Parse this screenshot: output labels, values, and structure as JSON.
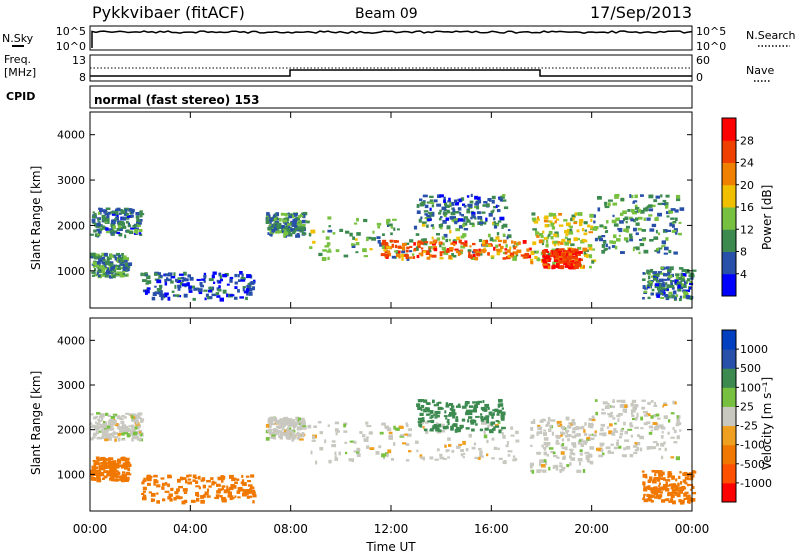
{
  "header": {
    "station": "Pykkvibaer (fitACF)",
    "beam": "Beam 09",
    "date": "17/Sep/2013"
  },
  "panels": {
    "nsky_label": "N.Sky",
    "nsky_ticks": [
      "10^5",
      "10^0"
    ],
    "nsearch_label": "N.Search",
    "nsearch_ticks": [
      "10^5",
      "10^0"
    ],
    "freq_label": "Freq.",
    "freq_unit": "[MHz]",
    "freq_ticks": [
      "13",
      "8"
    ],
    "nave_label": "Nave",
    "nave_ticks": [
      "60",
      "0"
    ],
    "cpid_label": "CPID",
    "cpid_text": "normal (fast stereo) 153"
  },
  "colors": {
    "power_scale": [
      "#0000ff",
      "#2850a8",
      "#3c8a50",
      "#78c040",
      "#f0c000",
      "#f08000",
      "#f04000",
      "#ff0000"
    ],
    "velocity_scale": [
      "#ff0000",
      "#ff5000",
      "#f07800",
      "#f0a020",
      "#c8c8c0",
      "#78c040",
      "#3c8a50",
      "#2850a8",
      "#0040c0"
    ],
    "ground_scatter": "#c8c8c0",
    "trace": "#000000"
  },
  "chart_data": [
    {
      "type": "heatmap",
      "title": "",
      "xlabel": "Time UT",
      "ylabel": "Slant Range [km]",
      "x_ticks": [
        "00:00",
        "04:00",
        "08:00",
        "12:00",
        "16:00",
        "20:00",
        "00:00"
      ],
      "y_ticks": [
        1000,
        2000,
        3000,
        4000
      ],
      "xlim": [
        0,
        24
      ],
      "ylim": [
        180,
        4500
      ],
      "colorbar": {
        "label": "Power [dB]",
        "ticks": [
          "4",
          "8",
          "12",
          "16",
          "20",
          "24",
          "28"
        ],
        "range": [
          0,
          30
        ]
      },
      "scatter_regions": [
        {
          "t0": 0.0,
          "t1": 1.5,
          "r0": 900,
          "r1": 1400,
          "value": 10
        },
        {
          "t0": 0.0,
          "t1": 2.0,
          "r0": 1800,
          "r1": 2400,
          "value": 8
        },
        {
          "t0": 2.0,
          "t1": 6.5,
          "r0": 400,
          "r1": 1000,
          "value": 6
        },
        {
          "t0": 7.0,
          "t1": 8.5,
          "r0": 1800,
          "r1": 2300,
          "value": 10
        },
        {
          "t0": 8.5,
          "t1": 17.0,
          "r0": 1300,
          "r1": 2200,
          "value": 12
        },
        {
          "t0": 11.5,
          "t1": 17.5,
          "r0": 1300,
          "r1": 1700,
          "value": 24
        },
        {
          "t0": 13.0,
          "t1": 16.5,
          "r0": 2000,
          "r1": 2700,
          "value": 8
        },
        {
          "t0": 17.5,
          "t1": 20.0,
          "r0": 1100,
          "r1": 2300,
          "value": 16
        },
        {
          "t0": 18.0,
          "t1": 19.5,
          "r0": 1100,
          "r1": 1500,
          "value": 28
        },
        {
          "t0": 20.0,
          "t1": 23.5,
          "r0": 1400,
          "r1": 2700,
          "value": 10
        },
        {
          "t0": 22.0,
          "t1": 24.0,
          "r0": 400,
          "r1": 1100,
          "value": 8
        }
      ]
    },
    {
      "type": "heatmap",
      "title": "",
      "xlabel": "Time UT",
      "ylabel": "Slant Range [km]",
      "x_ticks": [
        "00:00",
        "04:00",
        "08:00",
        "12:00",
        "16:00",
        "20:00",
        "00:00"
      ],
      "y_ticks": [
        1000,
        2000,
        3000,
        4000
      ],
      "xlim": [
        0,
        24
      ],
      "ylim": [
        180,
        4500
      ],
      "colorbar": {
        "label": "Velocity [m s⁻¹]",
        "ticks": [
          "1000",
          "500",
          "100",
          "25",
          "-25",
          "-100",
          "-500",
          "-1000"
        ]
      },
      "scatter_regions": [
        {
          "t0": 0.0,
          "t1": 1.5,
          "r0": 900,
          "r1": 1400,
          "value": -200
        },
        {
          "t0": 0.0,
          "t1": 2.0,
          "r0": 1800,
          "r1": 2400,
          "value": 0
        },
        {
          "t0": 2.0,
          "t1": 6.5,
          "r0": 400,
          "r1": 1000,
          "value": -200
        },
        {
          "t0": 7.0,
          "t1": 8.5,
          "r0": 1800,
          "r1": 2300,
          "value": 0
        },
        {
          "t0": 8.5,
          "t1": 17.0,
          "r0": 1300,
          "r1": 2200,
          "value": 0
        },
        {
          "t0": 13.0,
          "t1": 16.5,
          "r0": 2000,
          "r1": 2700,
          "value": 200
        },
        {
          "t0": 17.5,
          "t1": 20.0,
          "r0": 1100,
          "r1": 2300,
          "value": 0
        },
        {
          "t0": 20.0,
          "t1": 23.5,
          "r0": 1400,
          "r1": 2700,
          "value": 0
        },
        {
          "t0": 22.0,
          "t1": 24.0,
          "r0": 400,
          "r1": 1100,
          "value": -200
        }
      ]
    }
  ]
}
